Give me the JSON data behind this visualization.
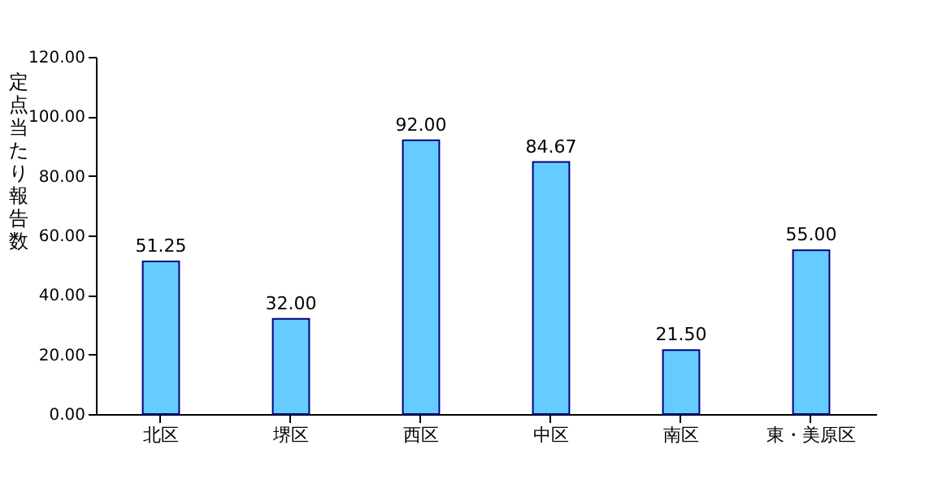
{
  "chart_data": {
    "type": "bar",
    "ylabel": "定点当たり報告数",
    "categories": [
      "北区",
      "堺区",
      "西区",
      "中区",
      "南区",
      "東・美原区"
    ],
    "values": [
      51.25,
      32.0,
      92.0,
      84.67,
      21.5,
      55.0
    ],
    "value_labels": [
      "51.25",
      "32.00",
      "92.00",
      "84.67",
      "21.50",
      "55.00"
    ],
    "color": "#66ccff",
    "ylim": [
      0,
      120
    ],
    "yticks": [
      {
        "value": 0,
        "label": "0.00"
      },
      {
        "value": 20,
        "label": "20.00"
      },
      {
        "value": 40,
        "label": "40.00"
      },
      {
        "value": 60,
        "label": "60.00"
      },
      {
        "value": 80,
        "label": "80.00"
      },
      {
        "value": 100,
        "label": "100.00"
      },
      {
        "value": 120,
        "label": "120.00"
      }
    ],
    "grid": false
  }
}
